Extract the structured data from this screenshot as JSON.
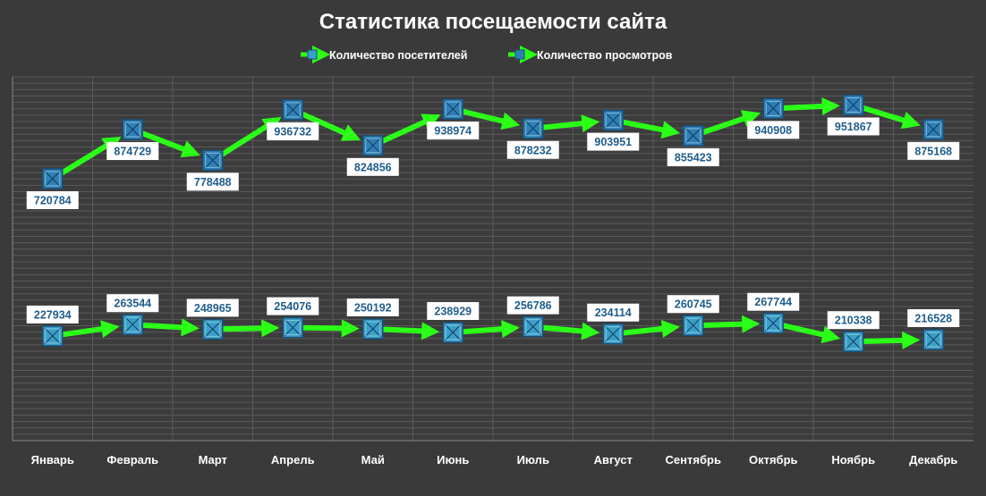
{
  "chart_data": {
    "type": "line",
    "title": "Статистика посещаемости сайта",
    "categories": [
      "Январь",
      "Февраль",
      "Март",
      "Апрель",
      "Май",
      "Июнь",
      "Июль",
      "Август",
      "Сентябрь",
      "Октябрь",
      "Ноябрь",
      "Декабрь"
    ],
    "series": [
      {
        "name": "Количество посетителей",
        "values": [
          227934,
          263544,
          248965,
          254076,
          250192,
          238929,
          256786,
          234114,
          260745,
          267744,
          210338,
          216528
        ],
        "line_color": "#2bff17",
        "marker_color": "#3a9fc8",
        "label_position": "above"
      },
      {
        "name": "Количество просмотров",
        "values": [
          720784,
          874729,
          778488,
          936732,
          824856,
          938974,
          878232,
          903951,
          855423,
          940908,
          951867,
          875168
        ],
        "line_color": "#2bff17",
        "marker_color": "#2e7fb5",
        "label_position": "below"
      }
    ],
    "xlabel": "",
    "ylabel": "",
    "ylim": [
      -100000,
      1040000
    ],
    "grid": true,
    "legend_position": "top",
    "colors": {
      "background": "#3a3a3a",
      "plot_background": "#3c3c3c",
      "gridline": "#5a5a5a",
      "axis": "#888888",
      "text": "#ffffff",
      "label_box": "#ffffff",
      "label_text": "#1f5d8c"
    }
  }
}
